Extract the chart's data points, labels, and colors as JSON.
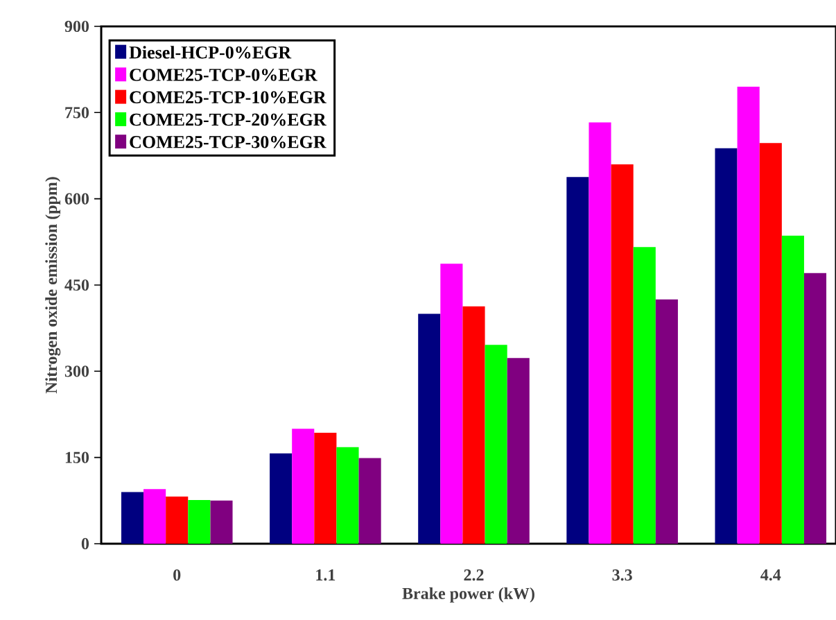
{
  "chart_data": {
    "type": "bar",
    "xlabel": "Brake power (kW)",
    "ylabel": "Nitrogen oxide emission (ppm)",
    "categories": [
      "0",
      "1.1",
      "2.2",
      "3.3",
      "4.4"
    ],
    "series": [
      {
        "name": "Diesel-HCP-0%EGR",
        "color": "#000080",
        "values": [
          90,
          157,
          400,
          638,
          688
        ]
      },
      {
        "name": "COME25-TCP-0%EGR",
        "color": "#ff00ff",
        "values": [
          95,
          200,
          487,
          733,
          795
        ]
      },
      {
        "name": "COME25-TCP-10%EGR",
        "color": "#ff0000",
        "values": [
          82,
          193,
          413,
          660,
          697
        ]
      },
      {
        "name": "COME25-TCP-20%EGR",
        "color": "#00ff00",
        "values": [
          76,
          168,
          346,
          516,
          536
        ]
      },
      {
        "name": "COME25-TCP-30%EGR",
        "color": "#800080",
        "values": [
          75,
          149,
          323,
          425,
          471
        ]
      }
    ],
    "ylim": [
      0,
      900
    ],
    "yticks": [
      0,
      150,
      300,
      450,
      600,
      750,
      900
    ],
    "grid": false,
    "legend": "top left"
  }
}
